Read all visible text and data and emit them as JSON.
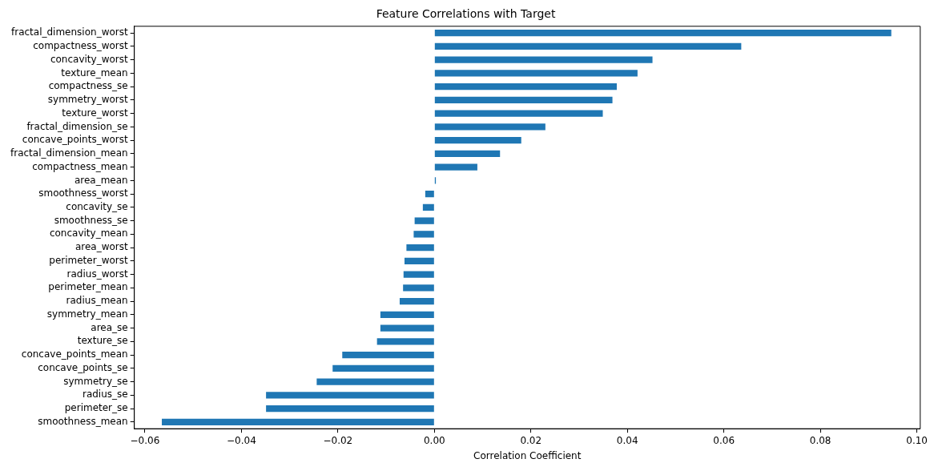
{
  "chart_data": {
    "type": "bar",
    "orientation": "horizontal",
    "title": "Feature Correlations with Target",
    "xlabel": "Correlation Coefficient",
    "categories": [
      "fractal_dimension_worst",
      "compactness_worst",
      "concavity_worst",
      "texture_mean",
      "compactness_se",
      "symmetry_worst",
      "texture_worst",
      "fractal_dimension_se",
      "concave_points_worst",
      "fractal_dimension_mean",
      "compactness_mean",
      "area_mean",
      "smoothness_worst",
      "concavity_se",
      "smoothness_se",
      "concavity_mean",
      "area_worst",
      "perimeter_worst",
      "radius_worst",
      "perimeter_mean",
      "radius_mean",
      "symmetry_mean",
      "area_se",
      "texture_se",
      "concave_points_mean",
      "concave_points_se",
      "symmetry_se",
      "radius_se",
      "perimeter_se",
      "smoothness_mean"
    ],
    "values": [
      0.0947,
      0.0636,
      0.0452,
      0.0421,
      0.0378,
      0.0369,
      0.0349,
      0.023,
      0.018,
      0.0136,
      0.0089,
      0.0003,
      -0.0019,
      -0.0024,
      -0.0041,
      -0.0043,
      -0.0058,
      -0.0062,
      -0.0064,
      -0.0065,
      -0.0072,
      -0.0112,
      -0.0112,
      -0.0119,
      -0.0191,
      -0.0211,
      -0.0244,
      -0.0349,
      -0.0349,
      -0.0565
    ],
    "color": "#1f77b4",
    "xlim": [
      -0.0622,
      0.1007
    ],
    "xticks": [
      {
        "value": -0.06,
        "label": "−0.06"
      },
      {
        "value": -0.04,
        "label": "−0.04"
      },
      {
        "value": -0.02,
        "label": "−0.02"
      },
      {
        "value": 0,
        "label": "0.00"
      },
      {
        "value": 0.02,
        "label": "0.02"
      },
      {
        "value": 0.04,
        "label": "0.04"
      },
      {
        "value": 0.06,
        "label": "0.06"
      },
      {
        "value": 0.08,
        "label": "0.08"
      },
      {
        "value": 0.1,
        "label": "0.10"
      }
    ],
    "grid": false,
    "legend": false
  }
}
